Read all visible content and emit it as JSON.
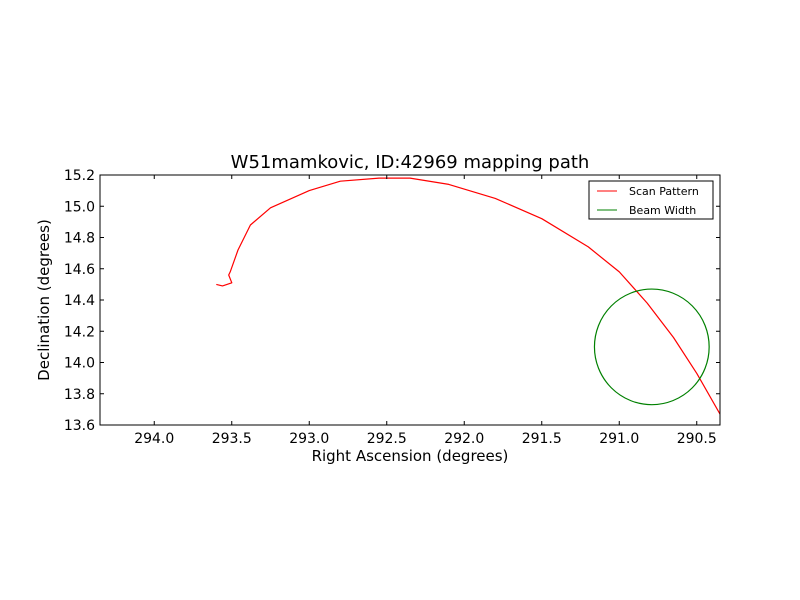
{
  "chart_data": {
    "type": "line",
    "title": "W51mamkovic, ID:42969 mapping path",
    "xlabel": "Right Ascension (degrees)",
    "ylabel": "Declination (degrees)",
    "xlim": [
      294.35,
      290.35
    ],
    "ylim": [
      13.6,
      15.2
    ],
    "x_inverted": true,
    "xticks": [
      294.0,
      293.5,
      293.0,
      292.5,
      292.0,
      291.5,
      291.0,
      290.5
    ],
    "xtick_labels": [
      "294.0",
      "293.5",
      "293.0",
      "292.5",
      "292.0",
      "291.5",
      "291.0",
      "290.5"
    ],
    "yticks": [
      13.6,
      13.8,
      14.0,
      14.2,
      14.4,
      14.6,
      14.8,
      15.0,
      15.2
    ],
    "ytick_labels": [
      "13.6",
      "13.8",
      "14.0",
      "14.2",
      "14.4",
      "14.6",
      "14.8",
      "15.0",
      "15.2"
    ],
    "legend_position": "top-right",
    "grid": false,
    "series": [
      {
        "name": "Scan Pattern",
        "color": "#ff0000",
        "x": [
          293.6,
          293.56,
          293.5,
          293.52,
          293.51,
          293.46,
          293.38,
          293.25,
          293.0,
          292.8,
          292.55,
          292.35,
          292.1,
          291.8,
          291.5,
          291.2,
          291.0,
          290.82,
          290.65,
          290.5,
          290.35
        ],
        "y": [
          14.5,
          14.49,
          14.51,
          14.56,
          14.58,
          14.72,
          14.88,
          14.99,
          15.1,
          15.16,
          15.18,
          15.18,
          15.14,
          15.05,
          14.92,
          14.74,
          14.58,
          14.38,
          14.16,
          13.93,
          13.67
        ]
      },
      {
        "name": "Beam Width",
        "color": "#008000",
        "shape": "circle",
        "center": [
          290.79,
          14.1
        ],
        "radius_deg": 0.37
      }
    ]
  }
}
